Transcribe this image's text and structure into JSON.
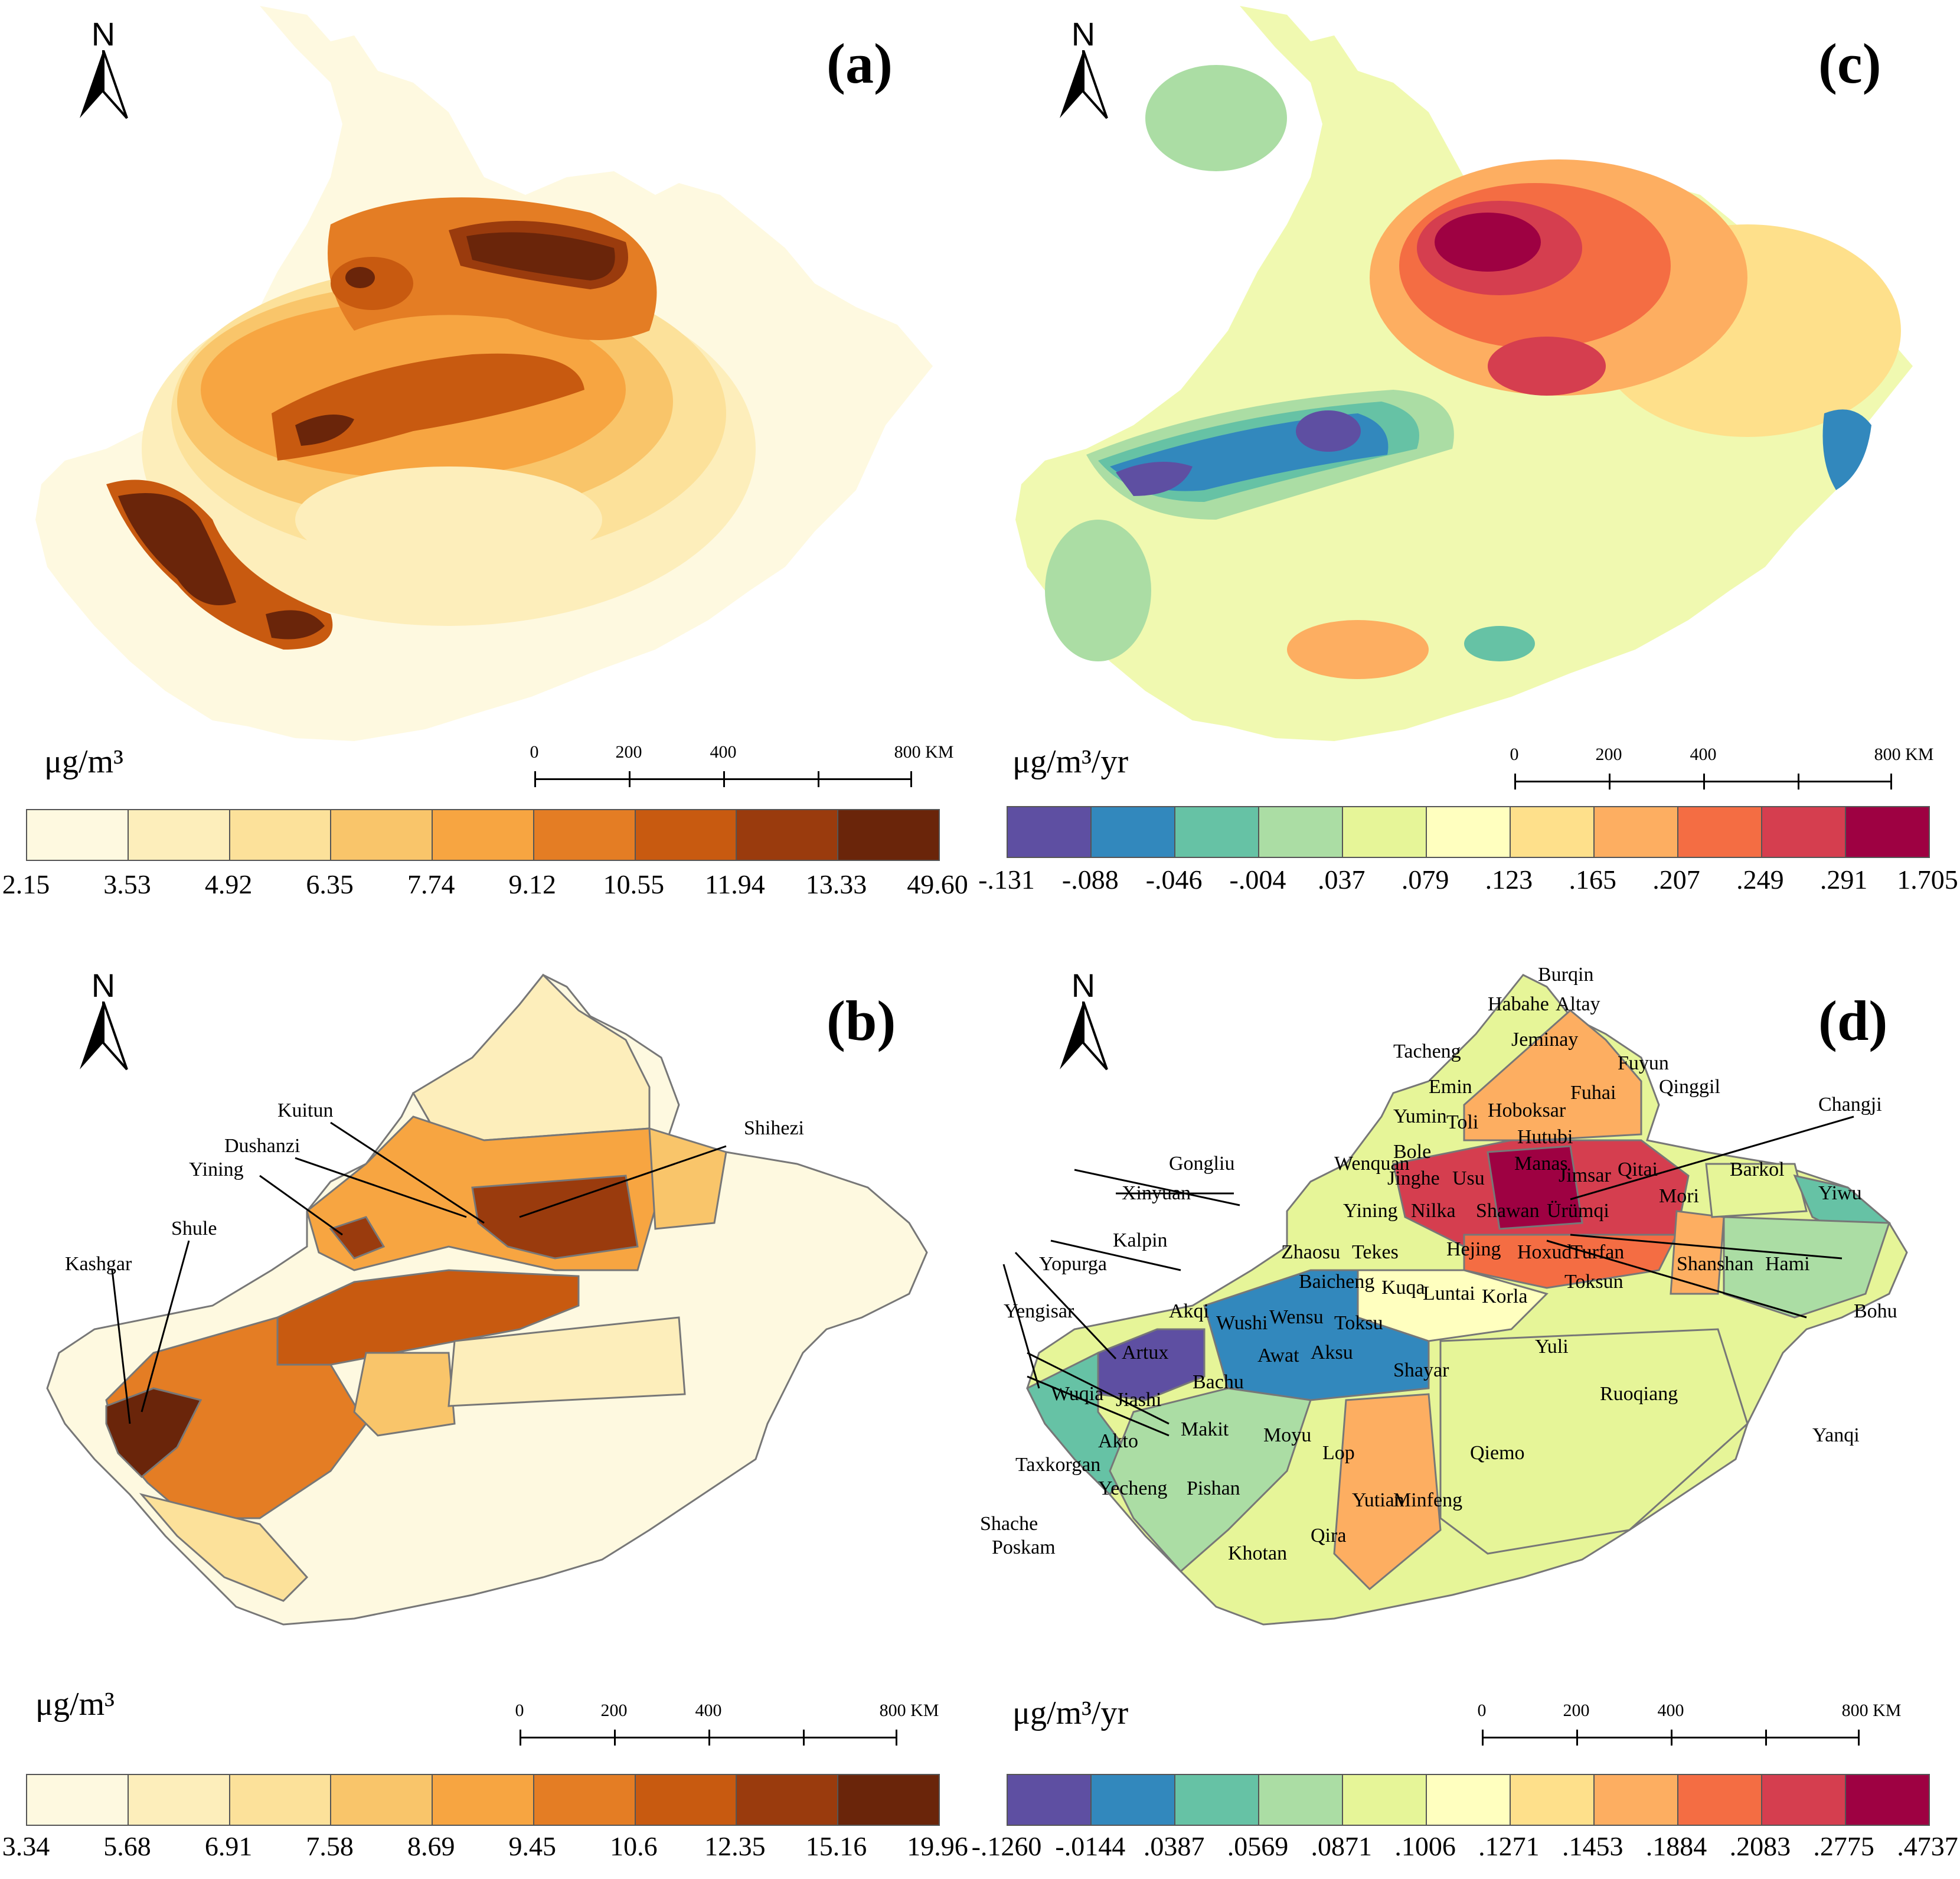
{
  "north_letter": "N",
  "scale_labels": [
    "0",
    "200",
    "400",
    "800 KM"
  ],
  "panels": {
    "a": {
      "label": "(a)",
      "unit": "μg/m³",
      "legend_ticks": [
        "2.15",
        "3.53",
        "4.92",
        "6.35",
        "7.74",
        "9.12",
        "10.55",
        "11.94",
        "13.33",
        "49.60"
      ],
      "colors": [
        "#fef9e0",
        "#fdeebb",
        "#fce19a",
        "#f9c56a",
        "#f7a541",
        "#e47d24",
        "#c85a10",
        "#9a3b0d",
        "#6a250a"
      ]
    },
    "b": {
      "label": "(b)",
      "unit": "μg/m³",
      "legend_ticks": [
        "3.34",
        "5.68",
        "6.91",
        "7.58",
        "8.69",
        "9.45",
        "10.6",
        "12.35",
        "15.16",
        "19.96"
      ],
      "colors": [
        "#fef9e0",
        "#fdeebb",
        "#fce19a",
        "#f9c56a",
        "#f7a541",
        "#e47d24",
        "#c85a10",
        "#9a3b0d",
        "#6a250a"
      ],
      "place_labels": [
        "Kuitun",
        "Dushanzi",
        "Yining",
        "Shihezi",
        "Shule",
        "Kashgar"
      ]
    },
    "c": {
      "label": "(c)",
      "unit": "μg/m³/yr",
      "legend_ticks": [
        "-.131",
        "-.088",
        "-.046",
        "-.004",
        ".037",
        ".079",
        ".123",
        ".165",
        ".207",
        ".249",
        ".291",
        "1.705"
      ],
      "colors": [
        "#5e4fa2",
        "#3288bd",
        "#66c2a5",
        "#abdda4",
        "#e6f598",
        "#ffffbf",
        "#fee08b",
        "#fdae61",
        "#f46d43",
        "#d53e4f",
        "#9e0142"
      ]
    },
    "d": {
      "label": "(d)",
      "unit": "μg/m³/yr",
      "legend_ticks": [
        "-.1260",
        "-.0144",
        ".0387",
        ".0569",
        ".0871",
        ".1006",
        ".1271",
        ".1453",
        ".1884",
        ".2083",
        ".2775",
        ".4737"
      ],
      "colors": [
        "#5e4fa2",
        "#3288bd",
        "#66c2a5",
        "#abdda4",
        "#e6f598",
        "#ffffbf",
        "#fee08b",
        "#fdae61",
        "#f46d43",
        "#d53e4f",
        "#9e0142"
      ],
      "place_labels": [
        "Burqin",
        "Habahe",
        "Altay",
        "Jeminay",
        "Tacheng",
        "Emin",
        "Fuhai",
        "Fuyun",
        "Qinggil",
        "Changji",
        "Hoboksar",
        "Yumin",
        "Toli",
        "Hutubi",
        "Bole",
        "Wenquan",
        "Gongliu",
        "Manas",
        "Jinghe",
        "Usu",
        "Jimsar",
        "Qitai",
        "Barkol",
        "Yiwu",
        "Mori",
        "Yining",
        "Nilka",
        "Shawan",
        "Ürümqi",
        "Xinyuan",
        "Shanshan",
        "Hami",
        "Zhaosu",
        "Tekes",
        "Hejing",
        "Hoxud",
        "Turfan",
        "Kalpin",
        "Baicheng",
        "Kuqa",
        "Luntai",
        "Korla",
        "Toksun",
        "Yopurga",
        "Wensu",
        "Toksu",
        "Bohu",
        "Akqi",
        "Wushi",
        "Yengisar",
        "Artux",
        "Awat",
        "Aksu",
        "Shayar",
        "Yuli",
        "Wuqia",
        "Jiashi",
        "Bachu",
        "Ruoqiang",
        "Akto",
        "Makit",
        "Moyu",
        "Yanqi",
        "Taxkorgan",
        "Lop",
        "Qiemo",
        "Yecheng",
        "Pishan",
        "Yutian",
        "Minfeng",
        "Shache",
        "Qira",
        "Poskam",
        "Khotan"
      ]
    }
  }
}
